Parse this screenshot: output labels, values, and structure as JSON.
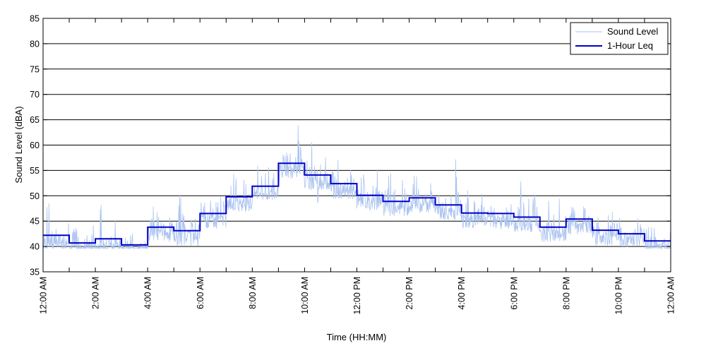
{
  "chart_data": {
    "type": "line",
    "title": "",
    "xlabel": "Time (HH:MM)",
    "ylabel": "Sound Level (dBA)",
    "xlim": [
      0,
      24
    ],
    "ylim": [
      35,
      85
    ],
    "y_ticks": [
      35,
      40,
      45,
      50,
      55,
      60,
      65,
      70,
      75,
      80,
      85
    ],
    "x_ticks": [
      {
        "value": 0,
        "label": "12:00 AM"
      },
      {
        "value": 2,
        "label": "2:00 AM"
      },
      {
        "value": 4,
        "label": "4:00 AM"
      },
      {
        "value": 6,
        "label": "6:00 AM"
      },
      {
        "value": 8,
        "label": "8:00 AM"
      },
      {
        "value": 10,
        "label": "10:00 AM"
      },
      {
        "value": 12,
        "label": "12:00 PM"
      },
      {
        "value": 14,
        "label": "2:00 PM"
      },
      {
        "value": 16,
        "label": "4:00 PM"
      },
      {
        "value": 18,
        "label": "6:00 PM"
      },
      {
        "value": 20,
        "label": "8:00 PM"
      },
      {
        "value": 22,
        "label": "10:00 PM"
      },
      {
        "value": 24,
        "label": "12:00 AM"
      }
    ],
    "grid": "horizontal",
    "legend_position": "top-right",
    "series": [
      {
        "name": "Sound Level",
        "style": "thin-light",
        "x": [
          0.0,
          0.25,
          0.5,
          0.75,
          1.0,
          1.25,
          1.5,
          1.75,
          2.0,
          2.25,
          2.5,
          2.75,
          3.0,
          3.25,
          3.5,
          3.75,
          4.0,
          4.25,
          4.5,
          4.75,
          5.0,
          5.25,
          5.5,
          5.75,
          6.0,
          6.25,
          6.5,
          6.75,
          7.0,
          7.25,
          7.5,
          7.75,
          8.0,
          8.25,
          8.5,
          8.75,
          9.0,
          9.25,
          9.5,
          9.75,
          10.0,
          10.25,
          10.5,
          10.75,
          11.0,
          11.25,
          11.5,
          11.75,
          12.0,
          12.25,
          12.5,
          12.75,
          13.0,
          13.25,
          13.5,
          13.75,
          14.0,
          14.25,
          14.5,
          14.75,
          15.0,
          15.25,
          15.5,
          15.75,
          16.0,
          16.25,
          16.5,
          16.75,
          17.0,
          17.25,
          17.5,
          17.75,
          18.0,
          18.25,
          18.5,
          18.75,
          19.0,
          19.25,
          19.5,
          19.75,
          20.0,
          20.25,
          20.5,
          20.75,
          21.0,
          21.25,
          21.5,
          21.75,
          22.0,
          22.25,
          22.5,
          22.75,
          23.0,
          23.25,
          23.5,
          23.75,
          24.0
        ],
        "values": [
          40.5,
          51.5,
          40.3,
          40.5,
          41.0,
          44.0,
          40.6,
          40.8,
          41.2,
          49.0,
          41.0,
          42.0,
          41.0,
          40.5,
          40.0,
          40.2,
          41.5,
          52.0,
          42.0,
          48.5,
          43.5,
          51.0,
          42.5,
          46.0,
          44.0,
          53.0,
          45.0,
          53.5,
          46.5,
          55.0,
          47.0,
          57.5,
          48.0,
          58.0,
          49.0,
          61.0,
          50.0,
          62.0,
          51.5,
          65.0,
          52.0,
          66.5,
          48.0,
          60.0,
          47.0,
          59.0,
          48.0,
          58.0,
          49.0,
          56.0,
          47.0,
          57.5,
          46.5,
          56.0,
          46.0,
          54.0,
          46.0,
          57.5,
          45.5,
          56.0,
          45.5,
          53.5,
          45.0,
          58.0,
          44.5,
          53.0,
          43.5,
          52.0,
          43.5,
          52.0,
          43.0,
          56.5,
          44.0,
          55.0,
          42.5,
          51.5,
          42.5,
          53.5,
          42.0,
          49.0,
          42.5,
          49.0,
          44.0,
          48.5,
          43.5,
          47.0,
          42.5,
          47.5,
          42.0,
          47.0,
          41.5,
          46.5,
          41.0,
          45.5,
          40.5,
          41.0,
          40.2
        ]
      },
      {
        "name": "1-Hour Leq",
        "style": "step-bold",
        "x": [
          0,
          1,
          2,
          3,
          4,
          5,
          6,
          7,
          8,
          9,
          10,
          11,
          12,
          13,
          14,
          15,
          16,
          17,
          18,
          19,
          20,
          21,
          22,
          23
        ],
        "values": [
          42.2,
          40.7,
          41.5,
          40.3,
          43.8,
          43.1,
          46.5,
          49.8,
          51.9,
          56.4,
          54.1,
          52.4,
          50.1,
          48.9,
          49.6,
          48.2,
          46.6,
          46.5,
          45.8,
          43.8,
          45.4,
          43.2,
          42.5,
          41.1
        ]
      }
    ]
  },
  "colors": {
    "sound_level": "#a9c2f0",
    "leq": "#0000cc",
    "grid": "#000000",
    "axis": "#000000"
  }
}
